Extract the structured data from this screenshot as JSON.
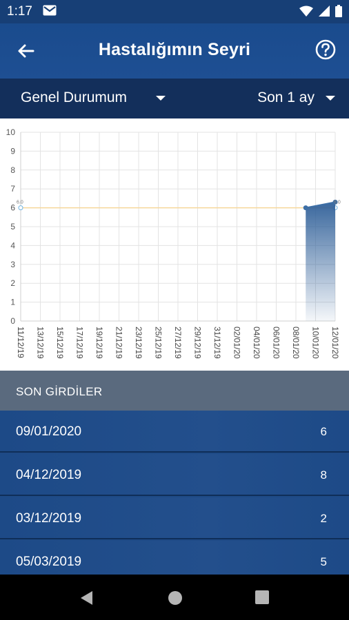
{
  "status_bar": {
    "time": "1:17"
  },
  "app_bar": {
    "title": "Hastalığımın Seyri"
  },
  "filters": {
    "left_label": "Genel Durumum",
    "right_label": "Son 1 ay"
  },
  "chart_data": {
    "type": "area",
    "y_ticks": [
      "0",
      "1",
      "2",
      "3",
      "4",
      "5",
      "6",
      "7",
      "8",
      "9",
      "10"
    ],
    "ylim": [
      0,
      10
    ],
    "x_tick_labels": [
      "11/12/19",
      "13/12/19",
      "15/12/19",
      "17/12/19",
      "19/12/19",
      "21/12/19",
      "23/12/19",
      "25/12/19",
      "27/12/19",
      "29/12/19",
      "31/12/19",
      "02/01/20",
      "04/01/20",
      "06/01/20",
      "08/01/20",
      "10/01/20",
      "12/01/20"
    ],
    "xlim": [
      "11/12/19",
      "12/01/20"
    ],
    "reference_line": {
      "value": 6,
      "color": "#f7d79a",
      "start_label": "6.0",
      "end_label": "6.0"
    },
    "series": [
      {
        "x": [
          "09/01/20",
          "12/01/20"
        ],
        "y": [
          6,
          6.3
        ],
        "color": "#3d6fa6"
      }
    ],
    "grid": true
  },
  "section": {
    "title": "SON GİRDİLER"
  },
  "entries": [
    {
      "date": "09/01/2020",
      "value": "6"
    },
    {
      "date": "04/12/2019",
      "value": "8"
    },
    {
      "date": "03/12/2019",
      "value": "2"
    },
    {
      "date": "05/03/2019",
      "value": "5"
    }
  ]
}
